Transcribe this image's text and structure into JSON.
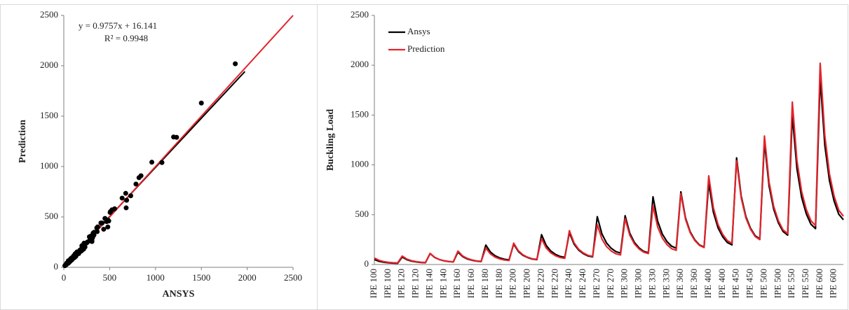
{
  "chart_data": [
    {
      "type": "scatter",
      "xlabel": "ANSYS",
      "ylabel": "Prediction",
      "annotations": [
        "y = 0.9757x + 16.141",
        "R² = 0.9948"
      ],
      "color": "#000000",
      "x": [
        50,
        32,
        23,
        17,
        14,
        12,
        75,
        48,
        34,
        26,
        20,
        18,
        110,
        70,
        50,
        37,
        30,
        26,
        125,
        80,
        56,
        43,
        34,
        30,
        195,
        125,
        88,
        66,
        53,
        47,
        205,
        131,
        92,
        70,
        55,
        49,
        300,
        192,
        135,
        102,
        81,
        72,
        320,
        205,
        144,
        109,
        86,
        77,
        480,
        307,
        216,
        163,
        130,
        115,
        490,
        314,
        221,
        167,
        132,
        118,
        680,
        435,
        306,
        231,
        184,
        163,
        730,
        467,
        329,
        248,
        197,
        175,
        820,
        525,
        369,
        279,
        221,
        197,
        1070,
        685,
        482,
        364,
        289,
        257,
        1230,
        787,
        554,
        418,
        332,
        295,
        1500,
        960,
        675,
        510,
        405,
        360,
        1870,
        1197,
        842,
        636,
        505,
        449
      ],
      "values": [
        65,
        42,
        29,
        22,
        18,
        16,
        85,
        54,
        38,
        29,
        23,
        20,
        112,
        72,
        50,
        38,
        30,
        27,
        135,
        86,
        61,
        46,
        36,
        32,
        165,
        106,
        74,
        56,
        45,
        40,
        215,
        138,
        97,
        73,
        58,
        52,
        260,
        166,
        117,
        88,
        70,
        62,
        340,
        218,
        153,
        116,
        92,
        82,
        400,
        256,
        180,
        136,
        108,
        96,
        460,
        294,
        207,
        156,
        124,
        110,
        590,
        378,
        266,
        201,
        159,
        142,
        710,
        454,
        320,
        241,
        192,
        170,
        890,
        570,
        401,
        303,
        240,
        214,
        1040,
        666,
        468,
        354,
        281,
        250,
        1290,
        826,
        581,
        439,
        348,
        310,
        1630,
        1043,
        734,
        554,
        440,
        391,
        2020,
        1293,
        909,
        687,
        545,
        485
      ],
      "lines": [
        {
          "color": "#000000",
          "x": [
            0,
            1975
          ],
          "values": [
            16,
            1943
          ]
        },
        {
          "color": "#e3242b",
          "x": [
            0,
            2500
          ],
          "values": [
            0,
            2500
          ]
        }
      ],
      "xlim": [
        0,
        2500
      ],
      "xticks": [
        0,
        500,
        1000,
        1500,
        2000,
        2500
      ],
      "ylim": [
        0,
        2500
      ],
      "yticks": [
        0,
        500,
        1000,
        1500,
        2000,
        2500
      ]
    },
    {
      "type": "line",
      "ylabel": "Buckling Load",
      "legend": "upper left",
      "categories": [
        "IPE 100",
        null,
        null,
        "IPE 100",
        null,
        null,
        "IPE 120",
        null,
        null,
        "IPE 120",
        null,
        null,
        "IPE 140",
        null,
        null,
        "IPE 140",
        null,
        null,
        "IPE 160",
        null,
        null,
        "IPE 160",
        null,
        null,
        "IPE 180",
        null,
        null,
        "IPE 180",
        null,
        null,
        "IPE 200",
        null,
        null,
        "IPE 200",
        null,
        null,
        "IPE 220",
        null,
        null,
        "IPE 220",
        null,
        null,
        "IPE 240",
        null,
        null,
        "IPE 240",
        null,
        null,
        "IPE 270",
        null,
        null,
        "IPE 270",
        null,
        null,
        "IPE 300",
        null,
        null,
        "IPE 300",
        null,
        null,
        "IPE 330",
        null,
        null,
        "IPE 330",
        null,
        null,
        "IPE 360",
        null,
        null,
        "IPE 360",
        null,
        null,
        "IPE 400",
        null,
        null,
        "IPE 400",
        null,
        null,
        "IPE 450",
        null,
        null,
        "IPE 450",
        null,
        null,
        "IPE 500",
        null,
        null,
        "IPE 500",
        null,
        null,
        "IPE 550",
        null,
        null,
        "IPE 550",
        null,
        null,
        "IPE 600",
        null,
        null,
        "IPE 600",
        null,
        null
      ],
      "series": [
        {
          "name": "Ansys",
          "color": "#000000",
          "values": [
            50,
            32,
            23,
            17,
            14,
            12,
            75,
            48,
            34,
            26,
            20,
            18,
            110,
            70,
            50,
            37,
            30,
            26,
            125,
            80,
            56,
            43,
            34,
            30,
            195,
            125,
            88,
            66,
            53,
            47,
            205,
            131,
            92,
            70,
            55,
            49,
            300,
            192,
            135,
            102,
            81,
            72,
            320,
            205,
            144,
            109,
            86,
            77,
            480,
            307,
            216,
            163,
            130,
            115,
            490,
            314,
            221,
            167,
            132,
            118,
            680,
            435,
            306,
            231,
            184,
            163,
            730,
            467,
            329,
            248,
            197,
            175,
            820,
            525,
            369,
            279,
            221,
            197,
            1070,
            685,
            482,
            364,
            289,
            257,
            1230,
            787,
            554,
            418,
            332,
            295,
            1500,
            960,
            675,
            510,
            405,
            360,
            1870,
            1197,
            842,
            636,
            505,
            449
          ]
        },
        {
          "name": "Prediction",
          "color": "#e3242b",
          "values": [
            65,
            42,
            29,
            22,
            18,
            16,
            85,
            54,
            38,
            29,
            23,
            20,
            112,
            72,
            50,
            38,
            30,
            27,
            135,
            86,
            61,
            46,
            36,
            32,
            165,
            106,
            74,
            56,
            45,
            40,
            215,
            138,
            97,
            73,
            58,
            52,
            260,
            166,
            117,
            88,
            70,
            62,
            340,
            218,
            153,
            116,
            92,
            82,
            400,
            256,
            180,
            136,
            108,
            96,
            460,
            294,
            207,
            156,
            124,
            110,
            590,
            378,
            266,
            201,
            159,
            142,
            710,
            454,
            320,
            241,
            192,
            170,
            890,
            570,
            401,
            303,
            240,
            214,
            1040,
            666,
            468,
            354,
            281,
            250,
            1290,
            826,
            581,
            439,
            348,
            310,
            1630,
            1043,
            734,
            554,
            440,
            391,
            2020,
            1293,
            909,
            687,
            545,
            485
          ]
        }
      ],
      "ylim": [
        0,
        2500
      ],
      "yticks": [
        0,
        500,
        1000,
        1500,
        2000,
        2500
      ]
    }
  ]
}
